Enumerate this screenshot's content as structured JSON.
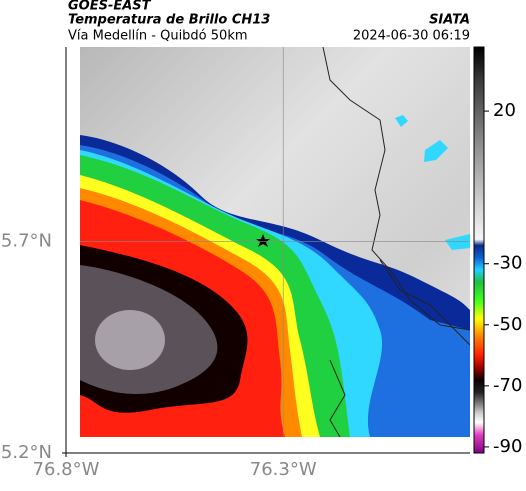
{
  "chart_data": {
    "type": "map",
    "source": "GOES-EAST",
    "title": "Temperatura de Brillo CH13",
    "brand": "SIATA",
    "subtitle": "Vía Medellín - Quibdó 50km",
    "timestamp": "2024-06-30 06:19",
    "xlim": [
      -76.8,
      -75.87
    ],
    "ylim": [
      5.2,
      6.16
    ],
    "xticks": [
      {
        "value": -76.8,
        "label": "76.8°W"
      },
      {
        "value": -76.3,
        "label": "76.3°W"
      }
    ],
    "yticks": [
      {
        "value": 5.2,
        "label": "5.2°N"
      },
      {
        "value": 5.7,
        "label": "5.7°N"
      }
    ],
    "clim": [
      -92,
      41
    ],
    "cticks": [
      20,
      -30,
      -50,
      -70,
      -90
    ],
    "colormap": [
      {
        "value": 41,
        "color": "#000000"
      },
      {
        "value": 30,
        "color": "#3a3a3a"
      },
      {
        "value": 10,
        "color": "#8a8a8a"
      },
      {
        "value": -10,
        "color": "#d0d0d0"
      },
      {
        "value": -22,
        "color": "#f5f5f5"
      },
      {
        "value": -24,
        "color": "#0a2a8a"
      },
      {
        "value": -28,
        "color": "#1060d0"
      },
      {
        "value": -32,
        "color": "#20d0ff"
      },
      {
        "value": -36,
        "color": "#20c040"
      },
      {
        "value": -42,
        "color": "#40ff20"
      },
      {
        "value": -48,
        "color": "#ffff00"
      },
      {
        "value": -54,
        "color": "#ff8000"
      },
      {
        "value": -60,
        "color": "#ff2000"
      },
      {
        "value": -64,
        "color": "#a00000"
      },
      {
        "value": -68,
        "color": "#100000"
      },
      {
        "value": -72,
        "color": "#202020"
      },
      {
        "value": -76,
        "color": "#808080"
      },
      {
        "value": -79,
        "color": "#d0d0d0"
      },
      {
        "value": -82,
        "color": "#ffffff"
      },
      {
        "value": -86,
        "color": "#e040c0"
      },
      {
        "value": -92,
        "color": "#800080"
      }
    ]
  }
}
